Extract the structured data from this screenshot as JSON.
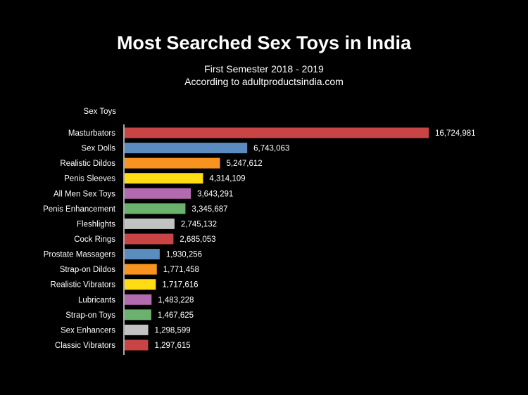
{
  "chart_data": {
    "type": "bar",
    "orientation": "horizontal",
    "title": "Most Searched Sex Toys in India",
    "subtitle": [
      "First Semester 2018 - 2019",
      "According to adultproductsindia.com"
    ],
    "category_axis_label": "Sex Toys",
    "grid": false,
    "legend": "none",
    "categories": [
      "Masturbators",
      "Sex Dolls",
      "Realistic Dildos",
      "Penis Sleeves",
      "All Men Sex Toys",
      "Penis Enhancement",
      "Fleshlights",
      "Cock Rings",
      "Prostate Massagers",
      "Strap-on Dildos",
      "Realistic Vibrators",
      "Lubricants",
      "Strap-on Toys",
      "Sex Enhancers",
      "Classic Vibrators"
    ],
    "values": [
      16724981,
      6743063,
      5247612,
      4314109,
      3643291,
      3345687,
      2745132,
      2685053,
      1930256,
      1771458,
      1717616,
      1483228,
      1467625,
      1298599,
      1297615
    ],
    "data_labels": [
      "16,724,981",
      "6,743,063",
      "5,247,612",
      "4,314,109",
      "3,643,291",
      "3,345,687",
      "2,745,132",
      "2,685,053",
      "1,930,256",
      "1,771,458",
      "1,717,616",
      "1,483,228",
      "1,467,625",
      "1,298,599",
      "1,297,615"
    ],
    "colors": [
      "#c94545",
      "#5b8bbf",
      "#f7931e",
      "#ffdc14",
      "#b36aae",
      "#6cb26f",
      "#c2c2c2"
    ],
    "background": "#000000"
  }
}
